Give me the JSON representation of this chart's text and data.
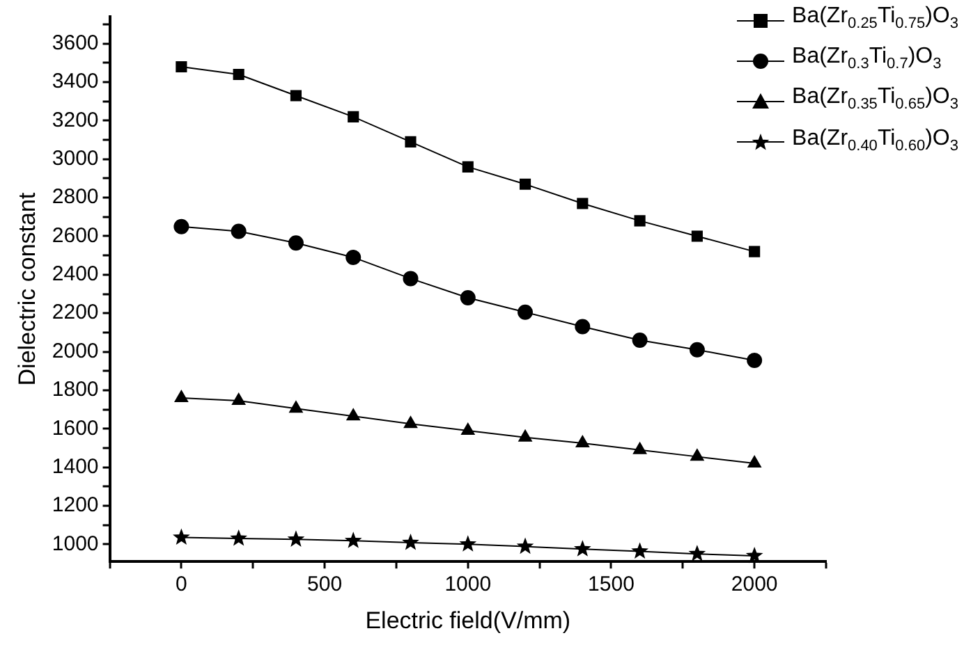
{
  "chart_data": {
    "type": "line",
    "xlabel": "Electric field(V/mm)",
    "ylabel": "Dielectric constant",
    "x": [
      0,
      200,
      400,
      600,
      800,
      1000,
      1200,
      1400,
      1600,
      1800,
      2000
    ],
    "series": [
      {
        "name": "Ba(Zr$_{0.25}$Ti$_{0.75}$)O$_{3}$",
        "color": "#000000",
        "marker": "square",
        "values": [
          3480,
          3440,
          3330,
          3220,
          3090,
          2960,
          2870,
          2770,
          2680,
          2600,
          2520
        ]
      },
      {
        "name": "Ba(Zr$_{0.3}$Ti$_{0.7}$)O$_{3}$",
        "color": "#000000",
        "marker": "circle",
        "values": [
          2650,
          2625,
          2565,
          2490,
          2380,
          2280,
          2205,
          2130,
          2060,
          2010,
          1955
        ]
      },
      {
        "name": "Ba(Zr$_{0.35}$Ti$_{0.65}$)O$_{3}$",
        "color": "#000000",
        "marker": "triangle",
        "values": [
          1760,
          1745,
          1705,
          1665,
          1625,
          1590,
          1555,
          1525,
          1490,
          1455,
          1420
        ]
      },
      {
        "name": "Ba(Zr$_{0.40}$Ti$_{0.60}$)O$_{3}$",
        "color": "#000000",
        "marker": "star",
        "values": [
          1035,
          1030,
          1025,
          1018,
          1008,
          1000,
          988,
          975,
          963,
          950,
          940
        ]
      }
    ],
    "xlim": [
      -250,
      2250
    ],
    "xticks": [
      {
        "value": -250,
        "label": null
      },
      0,
      {
        "value": 250,
        "label": null
      },
      500,
      {
        "value": 750,
        "label": null
      },
      1000,
      {
        "value": 1250,
        "label": null
      },
      1500,
      {
        "value": 1750,
        "label": null
      },
      2000,
      {
        "value": 2250,
        "label": null
      }
    ],
    "ylim": [
      910,
      3740
    ],
    "yticks": [
      1000,
      {
        "value": 1100,
        "label": null
      },
      1200,
      {
        "value": 1300,
        "label": null
      },
      1400,
      {
        "value": 1500,
        "label": null
      },
      1600,
      {
        "value": 1700,
        "label": null
      },
      1800,
      {
        "value": 1900,
        "label": null
      },
      2000,
      {
        "value": 2100,
        "label": null
      },
      2200,
      {
        "value": 2300,
        "label": null
      },
      2400,
      {
        "value": 2500,
        "label": null
      },
      2600,
      {
        "value": 2700,
        "label": null
      },
      2800,
      {
        "value": 2900,
        "label": null
      },
      3000,
      {
        "value": 3100,
        "label": null
      },
      3200,
      {
        "value": 3300,
        "label": null
      },
      3400,
      {
        "value": 3500,
        "label": null
      },
      3600,
      {
        "value": 3700,
        "label": null
      }
    ],
    "grid": false,
    "legend": "top right",
    "line_style": "solid"
  }
}
